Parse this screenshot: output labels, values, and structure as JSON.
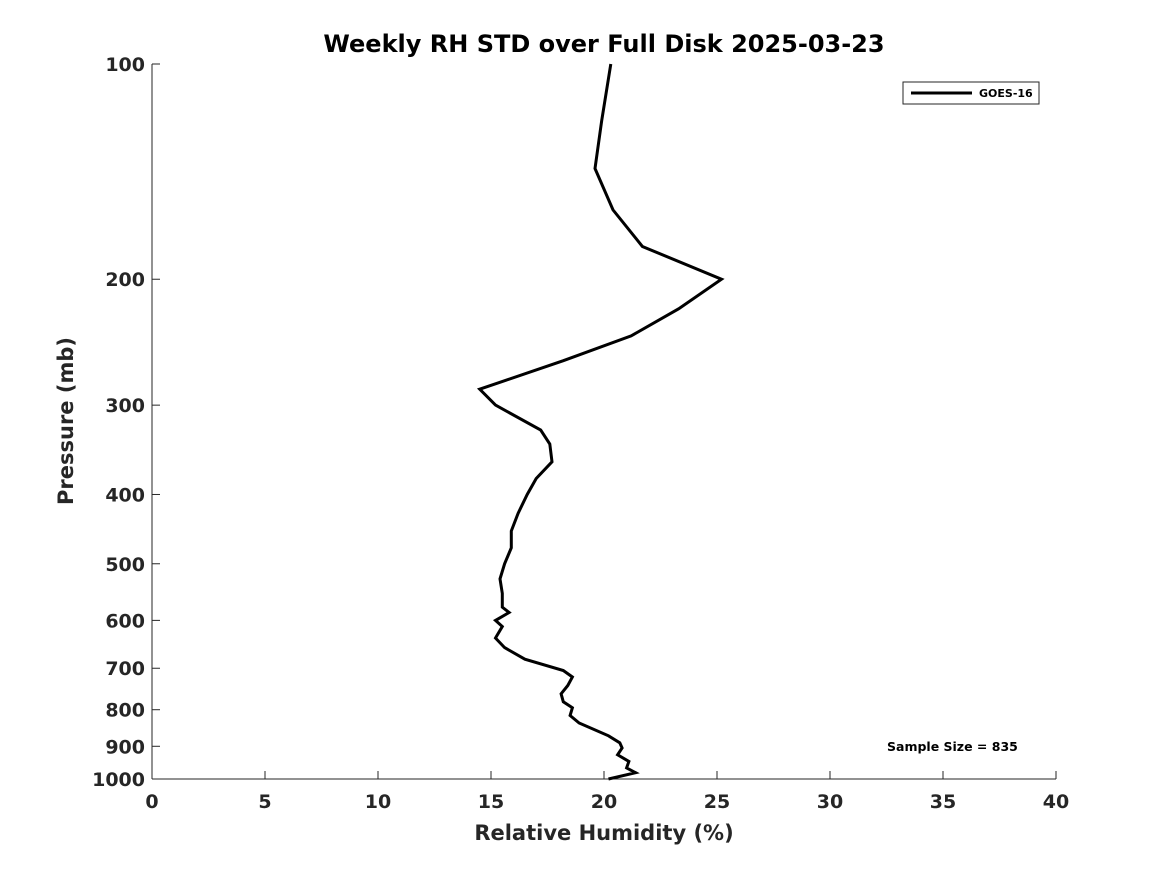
{
  "chart_data": {
    "type": "line",
    "title": "Weekly RH STD over Full Disk 2025-03-23",
    "xlabel": "Relative Humidity (%)",
    "ylabel": "Pressure (mb)",
    "xlim": [
      0,
      40
    ],
    "ylim": [
      100,
      1000
    ],
    "yscale": "log",
    "y_reversed": true,
    "grid": false,
    "x_ticks": [
      0,
      5,
      10,
      15,
      20,
      25,
      30,
      35,
      40
    ],
    "x_tick_labels": [
      "0",
      "5",
      "10",
      "15",
      "20",
      "25",
      "30",
      "35",
      "40"
    ],
    "y_ticks": [
      100,
      200,
      300,
      400,
      500,
      600,
      700,
      800,
      900,
      1000
    ],
    "y_tick_labels": [
      "100",
      "200",
      "300",
      "400",
      "500",
      "600",
      "700",
      "800",
      "900",
      "1000"
    ],
    "legend": {
      "position": "top-right",
      "entries": [
        "GOES-16"
      ]
    },
    "annotation": "Sample Size = 835",
    "series": [
      {
        "name": "GOES-16",
        "color": "#000000",
        "x": [
          20.3,
          19.9,
          19.6,
          20.4,
          21.7,
          25.2,
          23.3,
          21.2,
          18.2,
          14.5,
          15.2,
          17.2,
          17.6,
          17.7,
          17.0,
          16.6,
          16.2,
          15.9,
          15.9,
          15.6,
          15.4,
          15.5,
          15.5,
          15.8,
          15.2,
          15.5,
          15.2,
          15.6,
          16.5,
          18.2,
          18.6,
          18.4,
          18.1,
          18.2,
          18.6,
          18.5,
          18.9,
          20.2,
          20.7,
          20.8,
          20.6,
          21.1,
          21.0,
          21.4,
          20.2
        ],
        "y": [
          100,
          120,
          140,
          160,
          180,
          200,
          220,
          240,
          260,
          285,
          300,
          325,
          340,
          360,
          380,
          400,
          425,
          450,
          475,
          500,
          525,
          550,
          575,
          585,
          600,
          612,
          635,
          655,
          680,
          705,
          720,
          740,
          760,
          780,
          795,
          815,
          835,
          870,
          890,
          905,
          925,
          945,
          965,
          980,
          1000
        ]
      }
    ]
  }
}
